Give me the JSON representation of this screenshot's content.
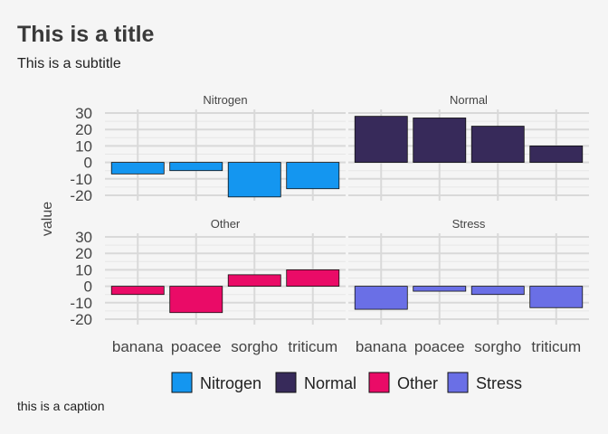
{
  "chart_data": {
    "type": "bar",
    "title": "This is a title",
    "subtitle": "This is a subtitle",
    "caption": "this is a caption",
    "xlabel": "",
    "ylabel": "value",
    "categories": [
      "banana",
      "poacee",
      "sorgho",
      "triticum"
    ],
    "ylim": [
      -20,
      30
    ],
    "yticks": [
      30,
      20,
      10,
      0,
      -10,
      -20
    ],
    "ytick_labels": [
      "30",
      "20",
      "10",
      "0",
      "-10",
      "-20"
    ],
    "facets": [
      "Nitrogen",
      "Normal",
      "Other",
      "Stress"
    ],
    "series": [
      {
        "name": "Nitrogen",
        "color": "#1496f0",
        "values": [
          -7,
          -5,
          -21,
          -16
        ]
      },
      {
        "name": "Normal",
        "color": "#372a5a",
        "values": [
          28,
          27,
          22,
          10
        ]
      },
      {
        "name": "Other",
        "color": "#ea0b67",
        "values": [
          -5,
          -16,
          7,
          10
        ]
      },
      {
        "name": "Stress",
        "color": "#6a6fe6",
        "values": [
          -14,
          -3,
          -5,
          -13
        ]
      }
    ],
    "legend": {
      "position": "bottom",
      "entries": [
        "Nitrogen",
        "Normal",
        "Other",
        "Stress"
      ]
    },
    "grid": true
  }
}
